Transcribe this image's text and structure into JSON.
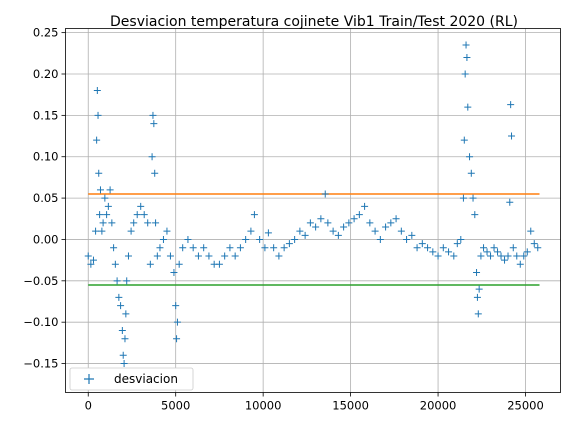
{
  "chart_data": {
    "type": "scatter",
    "title": "Desviacion temperatura cojinete Vib1 Train/Test 2020 (RL)",
    "xlabel": "",
    "ylabel": "",
    "xlim": [
      -1300,
      27000
    ],
    "ylim": [
      -0.185,
      0.255
    ],
    "grid": true,
    "legend_placement": "lower-left",
    "x_ticks": [
      0,
      5000,
      10000,
      15000,
      20000,
      25000
    ],
    "y_ticks": [
      -0.15,
      -0.1,
      -0.05,
      0.0,
      0.05,
      0.1,
      0.15,
      0.2,
      0.25
    ],
    "x_tick_labels": [
      "0",
      "5000",
      "10000",
      "15000",
      "20000",
      "25000"
    ],
    "y_tick_labels": [
      "−0.15",
      "−0.10",
      "−0.05",
      "0.00",
      "0.05",
      "0.10",
      "0.15",
      "0.20",
      "0.25"
    ],
    "series": [
      {
        "name": "desviacion",
        "marker": "+",
        "color": "#1f77b4",
        "points": [
          [
            0,
            -0.02
          ],
          [
            150,
            -0.03
          ],
          [
            300,
            -0.025
          ],
          [
            420,
            0.01
          ],
          [
            480,
            0.12
          ],
          [
            520,
            0.18
          ],
          [
            560,
            0.15
          ],
          [
            600,
            0.08
          ],
          [
            650,
            0.03
          ],
          [
            700,
            0.06
          ],
          [
            780,
            0.01
          ],
          [
            850,
            0.02
          ],
          [
            950,
            0.05
          ],
          [
            1050,
            0.03
          ],
          [
            1150,
            0.04
          ],
          [
            1250,
            0.06
          ],
          [
            1350,
            0.02
          ],
          [
            1450,
            -0.01
          ],
          [
            1550,
            -0.03
          ],
          [
            1650,
            -0.05
          ],
          [
            1750,
            -0.07
          ],
          [
            1850,
            -0.08
          ],
          [
            1950,
            -0.11
          ],
          [
            2000,
            -0.14
          ],
          [
            2050,
            -0.15
          ],
          [
            2100,
            -0.12
          ],
          [
            2150,
            -0.09
          ],
          [
            2200,
            -0.05
          ],
          [
            2300,
            -0.02
          ],
          [
            2450,
            0.01
          ],
          [
            2600,
            0.02
          ],
          [
            2800,
            0.03
          ],
          [
            3000,
            0.04
          ],
          [
            3200,
            0.03
          ],
          [
            3400,
            0.02
          ],
          [
            3550,
            -0.03
          ],
          [
            3650,
            0.1
          ],
          [
            3700,
            0.15
          ],
          [
            3750,
            0.14
          ],
          [
            3800,
            0.08
          ],
          [
            3850,
            0.02
          ],
          [
            3950,
            -0.02
          ],
          [
            4100,
            -0.01
          ],
          [
            4300,
            0.0
          ],
          [
            4500,
            0.01
          ],
          [
            4700,
            -0.02
          ],
          [
            4900,
            -0.04
          ],
          [
            5000,
            -0.08
          ],
          [
            5050,
            -0.12
          ],
          [
            5100,
            -0.1
          ],
          [
            5200,
            -0.03
          ],
          [
            5400,
            -0.01
          ],
          [
            5700,
            0.0
          ],
          [
            6000,
            -0.01
          ],
          [
            6300,
            -0.02
          ],
          [
            6600,
            -0.01
          ],
          [
            6900,
            -0.02
          ],
          [
            7200,
            -0.03
          ],
          [
            7500,
            -0.03
          ],
          [
            7800,
            -0.02
          ],
          [
            8100,
            -0.01
          ],
          [
            8400,
            -0.02
          ],
          [
            8700,
            -0.01
          ],
          [
            9000,
            -0.0
          ],
          [
            9300,
            0.01
          ],
          [
            9500,
            0.03
          ],
          [
            9800,
            0.0
          ],
          [
            10100,
            -0.01
          ],
          [
            10300,
            0.008
          ],
          [
            10600,
            -0.01
          ],
          [
            10900,
            -0.02
          ],
          [
            11200,
            -0.01
          ],
          [
            11500,
            -0.005
          ],
          [
            11800,
            0.0
          ],
          [
            12100,
            0.01
          ],
          [
            12400,
            0.005
          ],
          [
            12700,
            0.02
          ],
          [
            13000,
            0.015
          ],
          [
            13300,
            0.025
          ],
          [
            13550,
            0.055
          ],
          [
            13700,
            0.02
          ],
          [
            14000,
            0.01
          ],
          [
            14300,
            0.005
          ],
          [
            14600,
            0.015
          ],
          [
            14900,
            0.02
          ],
          [
            15200,
            0.025
          ],
          [
            15500,
            0.03
          ],
          [
            15800,
            0.04
          ],
          [
            16100,
            0.02
          ],
          [
            16400,
            0.01
          ],
          [
            16700,
            0.0
          ],
          [
            17000,
            0.015
          ],
          [
            17300,
            0.02
          ],
          [
            17600,
            0.025
          ],
          [
            17900,
            0.01
          ],
          [
            18200,
            0.0
          ],
          [
            18500,
            0.005
          ],
          [
            18800,
            -0.01
          ],
          [
            19100,
            -0.005
          ],
          [
            19400,
            -0.01
          ],
          [
            19700,
            -0.015
          ],
          [
            20000,
            -0.02
          ],
          [
            20300,
            -0.01
          ],
          [
            20600,
            -0.015
          ],
          [
            20900,
            -0.02
          ],
          [
            21100,
            -0.005
          ],
          [
            21300,
            0.0
          ],
          [
            21450,
            0.05
          ],
          [
            21500,
            0.12
          ],
          [
            21550,
            0.2
          ],
          [
            21600,
            0.235
          ],
          [
            21650,
            0.22
          ],
          [
            21700,
            0.16
          ],
          [
            21800,
            0.1
          ],
          [
            21900,
            0.08
          ],
          [
            22000,
            0.05
          ],
          [
            22100,
            0.03
          ],
          [
            22200,
            -0.04
          ],
          [
            22250,
            -0.07
          ],
          [
            22300,
            -0.09
          ],
          [
            22350,
            -0.06
          ],
          [
            22450,
            -0.02
          ],
          [
            22600,
            -0.01
          ],
          [
            22800,
            -0.015
          ],
          [
            23000,
            -0.02
          ],
          [
            23200,
            -0.01
          ],
          [
            23400,
            -0.015
          ],
          [
            23600,
            -0.02
          ],
          [
            23800,
            -0.025
          ],
          [
            24000,
            -0.02
          ],
          [
            24100,
            0.045
          ],
          [
            24150,
            0.163
          ],
          [
            24200,
            0.125
          ],
          [
            24300,
            -0.01
          ],
          [
            24500,
            -0.02
          ],
          [
            24700,
            -0.03
          ],
          [
            24900,
            -0.02
          ],
          [
            25100,
            -0.015
          ],
          [
            25300,
            0.01
          ],
          [
            25500,
            -0.005
          ],
          [
            25700,
            -0.01
          ]
        ]
      },
      {
        "name": "",
        "type": "line",
        "color": "#ff7f0e",
        "x": [
          0,
          25800
        ],
        "values": [
          0.055,
          0.055
        ]
      },
      {
        "name": "",
        "type": "line",
        "color": "#2ca02c",
        "x": [
          0,
          25800
        ],
        "values": [
          -0.055,
          -0.055
        ]
      }
    ]
  }
}
